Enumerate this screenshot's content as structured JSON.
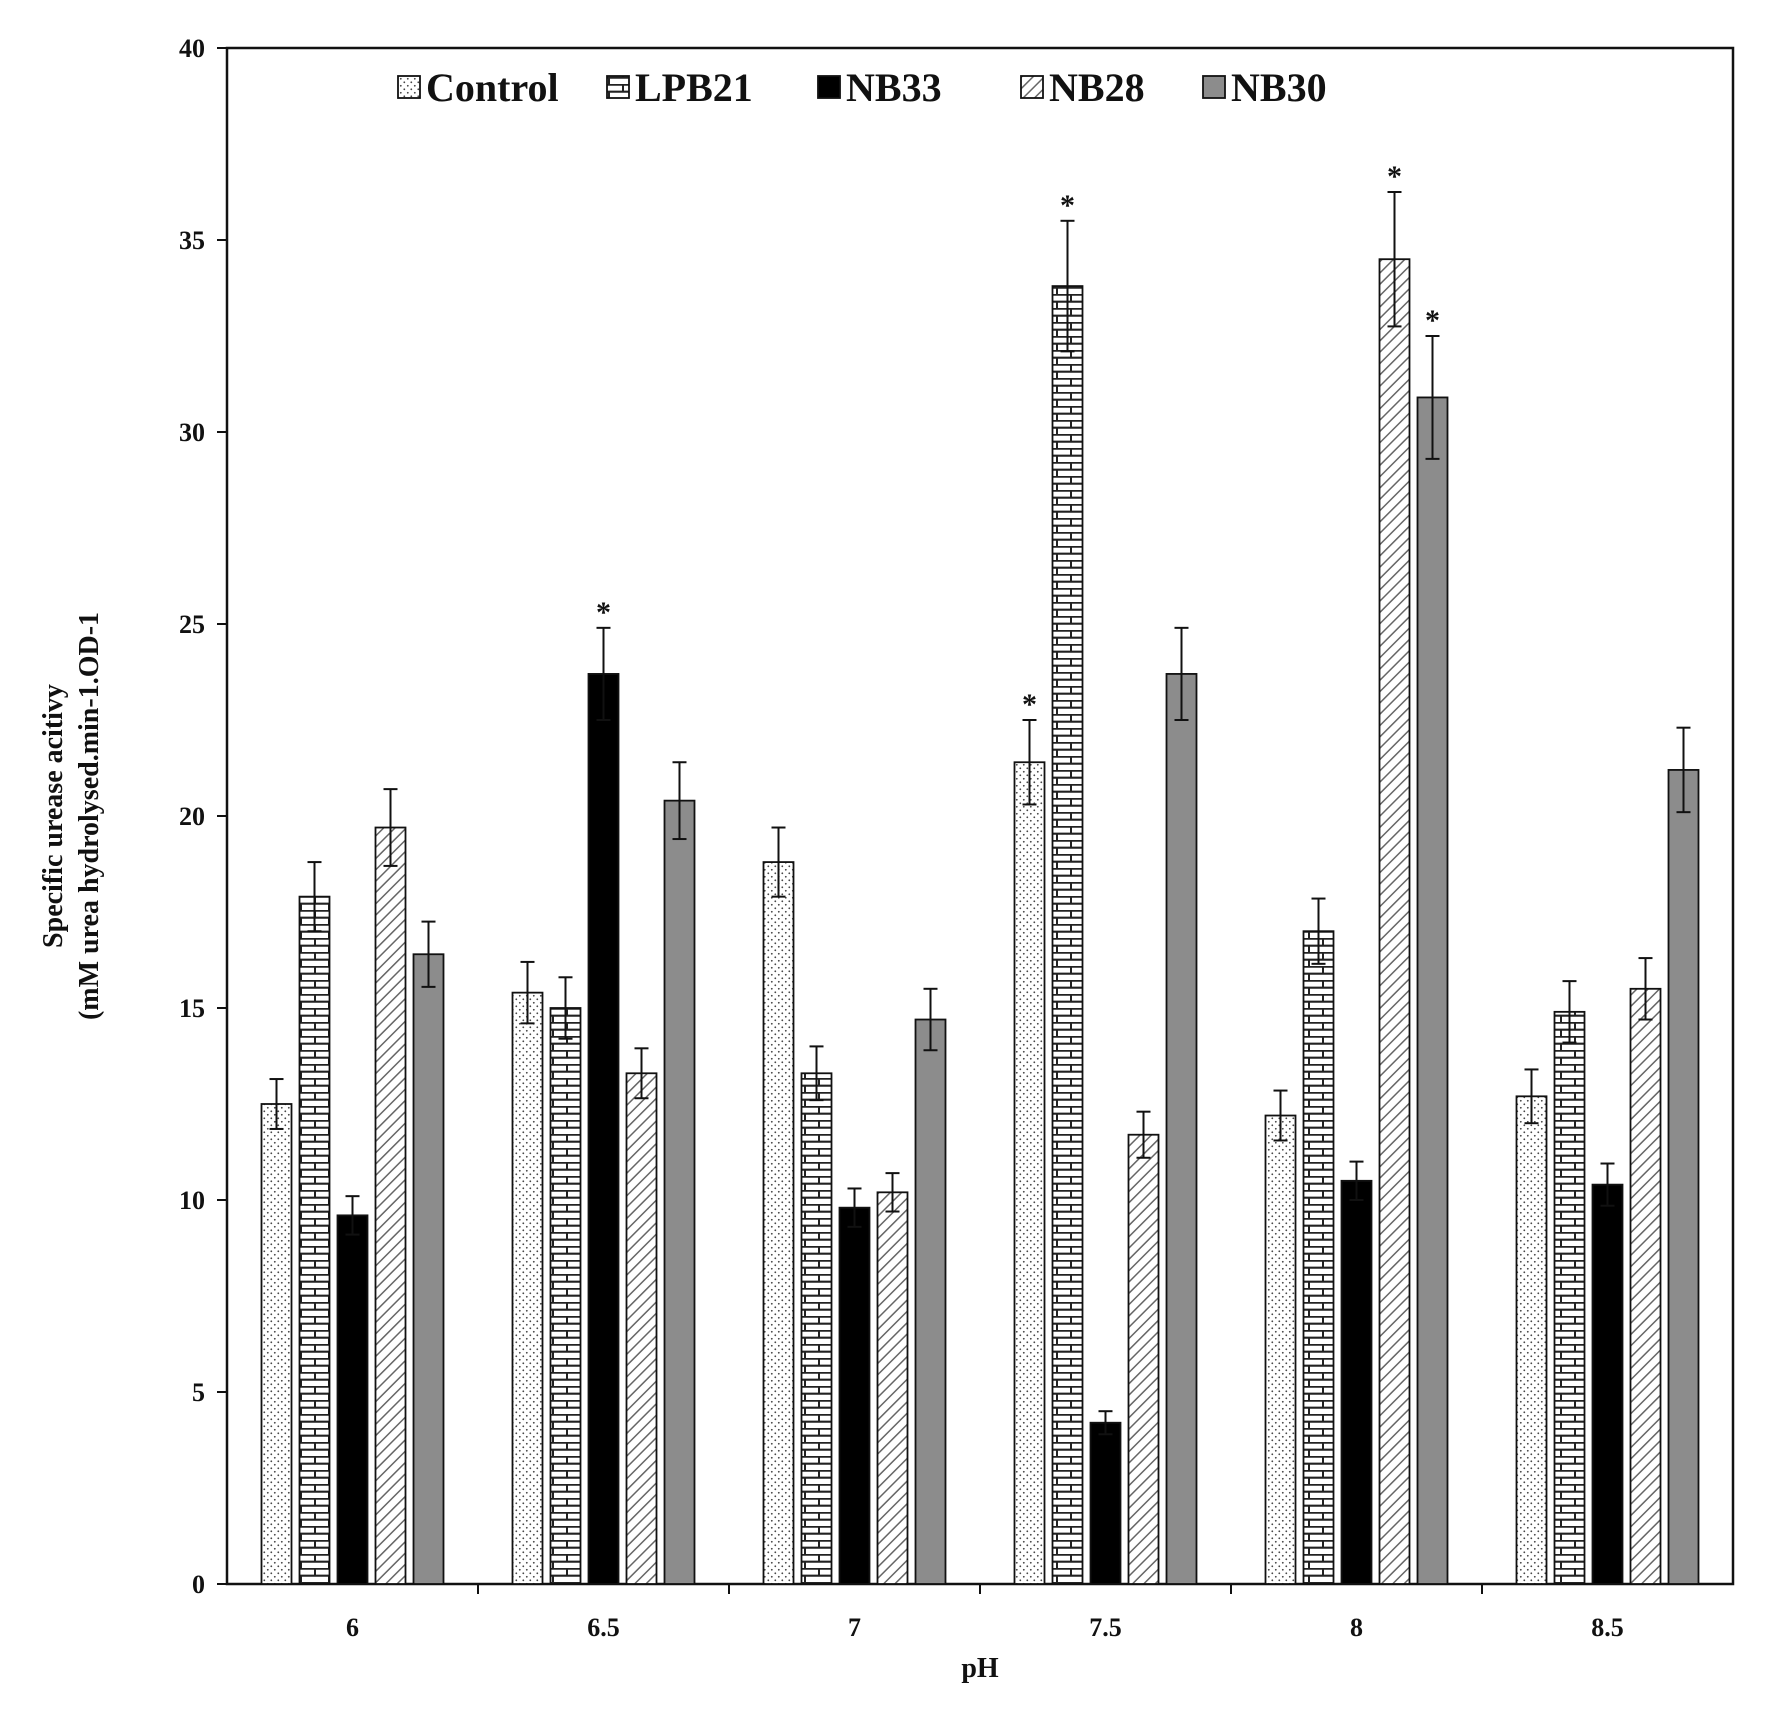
{
  "chart_data": {
    "type": "bar",
    "xlabel": "pH",
    "ylabel_lines": [
      "Specific urease acitivy",
      "(mM urea hydrolysed.min-1.OD-1"
    ],
    "ylim": [
      0,
      40
    ],
    "yticks": [
      "0",
      "5",
      "10",
      "15",
      "20",
      "25",
      "30",
      "35",
      "40"
    ],
    "categories": [
      "6",
      "6.5",
      "7",
      "7.5",
      "8",
      "8.5"
    ],
    "legend_position": "top",
    "grid": false,
    "significance_marker": "*",
    "series": [
      {
        "name": "Control",
        "pattern": "dots",
        "values": [
          12.5,
          15.4,
          18.8,
          21.4,
          12.2,
          12.7
        ],
        "errors": [
          0.65,
          0.8,
          0.9,
          1.1,
          0.65,
          0.7
        ],
        "significant": [
          false,
          false,
          false,
          true,
          false,
          false
        ]
      },
      {
        "name": "LPB21",
        "pattern": "brick",
        "values": [
          17.9,
          15.0,
          13.3,
          33.8,
          17.0,
          14.9
        ],
        "errors": [
          0.9,
          0.8,
          0.7,
          1.7,
          0.85,
          0.8
        ],
        "significant": [
          false,
          false,
          false,
          true,
          false,
          false
        ]
      },
      {
        "name": "NB33",
        "pattern": "solid-black",
        "values": [
          9.6,
          23.7,
          9.8,
          4.2,
          10.5,
          10.4
        ],
        "errors": [
          0.5,
          1.2,
          0.5,
          0.3,
          0.5,
          0.55
        ],
        "significant": [
          false,
          true,
          false,
          false,
          false,
          false
        ]
      },
      {
        "name": "NB28",
        "pattern": "diagonal",
        "values": [
          19.7,
          13.3,
          10.2,
          11.7,
          34.5,
          15.5
        ],
        "errors": [
          1.0,
          0.65,
          0.5,
          0.6,
          1.75,
          0.8
        ],
        "significant": [
          false,
          false,
          false,
          false,
          true,
          false
        ]
      },
      {
        "name": "NB30",
        "pattern": "gray",
        "values": [
          16.4,
          20.4,
          14.7,
          23.7,
          30.9,
          21.2
        ],
        "errors": [
          0.85,
          1.0,
          0.8,
          1.2,
          1.6,
          1.1
        ],
        "significant": [
          false,
          false,
          false,
          false,
          true,
          false
        ]
      }
    ]
  },
  "colors": {
    "axis": "#111111",
    "nb33_fill": "#000000",
    "nb30_fill": "#8c8c8c",
    "pattern_line": "#333333"
  }
}
